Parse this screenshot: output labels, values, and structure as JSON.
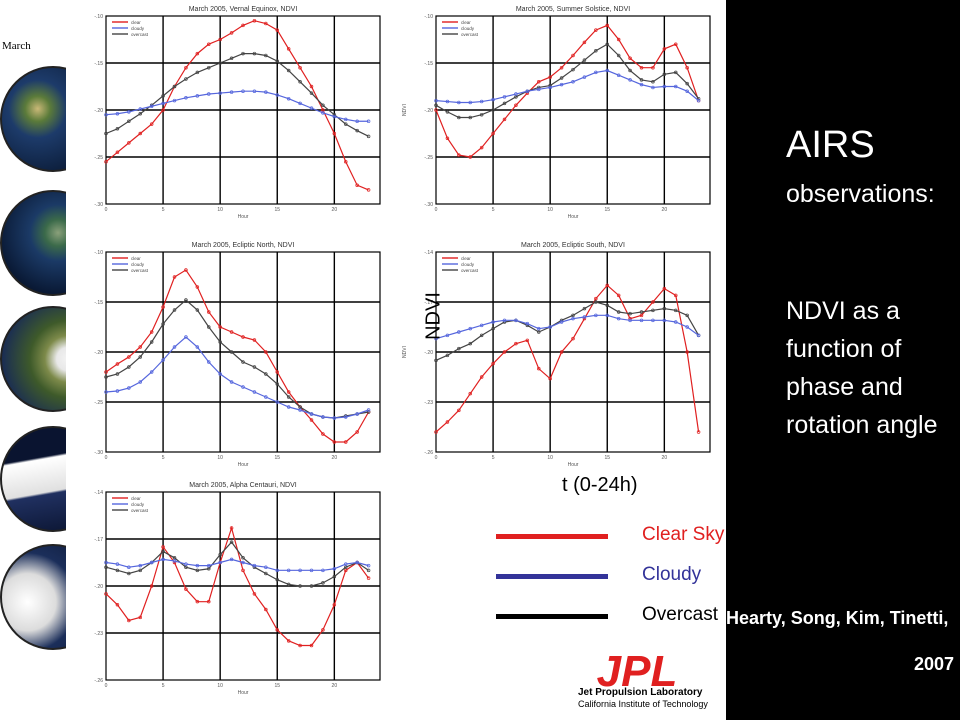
{
  "side_label": "March",
  "chart_data": [
    {
      "type": "line",
      "title": "March 2005, Vernal Equinox, NDVI",
      "xlabel": "Hour",
      "ylabel": "",
      "legend": [
        "clear",
        "cloudy",
        "overcast"
      ],
      "xlim": [
        0,
        24
      ],
      "ylim": [
        -0.3,
        -0.1
      ],
      "x": [
        0,
        1,
        2,
        3,
        4,
        5,
        6,
        7,
        8,
        9,
        10,
        11,
        12,
        13,
        14,
        15,
        16,
        17,
        18,
        19,
        20,
        21,
        22,
        23
      ],
      "series": [
        {
          "name": "clear",
          "color": "#e02020",
          "values": [
            -0.255,
            -0.245,
            -0.235,
            -0.225,
            -0.215,
            -0.2,
            -0.175,
            -0.155,
            -0.14,
            -0.13,
            -0.125,
            -0.118,
            -0.11,
            -0.105,
            -0.108,
            -0.115,
            -0.135,
            -0.155,
            -0.175,
            -0.2,
            -0.225,
            -0.255,
            -0.28,
            -0.285
          ]
        },
        {
          "name": "overcast",
          "color": "#444444",
          "values": [
            -0.225,
            -0.22,
            -0.212,
            -0.204,
            -0.195,
            -0.185,
            -0.175,
            -0.167,
            -0.16,
            -0.155,
            -0.15,
            -0.145,
            -0.14,
            -0.14,
            -0.142,
            -0.148,
            -0.158,
            -0.17,
            -0.182,
            -0.195,
            -0.205,
            -0.215,
            -0.222,
            -0.228
          ]
        },
        {
          "name": "cloudy",
          "color": "#5566dd",
          "values": [
            -0.205,
            -0.204,
            -0.202,
            -0.199,
            -0.196,
            -0.193,
            -0.19,
            -0.187,
            -0.185,
            -0.183,
            -0.182,
            -0.181,
            -0.18,
            -0.18,
            -0.181,
            -0.184,
            -0.188,
            -0.193,
            -0.198,
            -0.203,
            -0.207,
            -0.21,
            -0.212,
            -0.212
          ]
        }
      ]
    },
    {
      "type": "line",
      "title": "March 2005, Summer Solstice, NDVI",
      "xlabel": "Hour",
      "ylabel": "NDVI",
      "legend": [
        "clear",
        "cloudy",
        "overcast"
      ],
      "xlim": [
        0,
        24
      ],
      "ylim": [
        -0.3,
        -0.1
      ],
      "x": [
        0,
        1,
        2,
        3,
        4,
        5,
        6,
        7,
        8,
        9,
        10,
        11,
        12,
        13,
        14,
        15,
        16,
        17,
        18,
        19,
        20,
        21,
        22,
        23
      ],
      "series": [
        {
          "name": "clear",
          "color": "#e02020",
          "values": [
            -0.2,
            -0.23,
            -0.248,
            -0.25,
            -0.24,
            -0.225,
            -0.21,
            -0.195,
            -0.182,
            -0.17,
            -0.165,
            -0.155,
            -0.142,
            -0.128,
            -0.115,
            -0.11,
            -0.125,
            -0.145,
            -0.155,
            -0.155,
            -0.135,
            -0.13,
            -0.155,
            -0.19
          ]
        },
        {
          "name": "overcast",
          "color": "#444444",
          "values": [
            -0.195,
            -0.202,
            -0.208,
            -0.208,
            -0.205,
            -0.2,
            -0.193,
            -0.186,
            -0.18,
            -0.176,
            -0.174,
            -0.166,
            -0.157,
            -0.147,
            -0.137,
            -0.13,
            -0.142,
            -0.158,
            -0.168,
            -0.17,
            -0.162,
            -0.16,
            -0.172,
            -0.188
          ]
        },
        {
          "name": "cloudy",
          "color": "#5566dd",
          "values": [
            -0.19,
            -0.191,
            -0.192,
            -0.192,
            -0.191,
            -0.189,
            -0.186,
            -0.183,
            -0.18,
            -0.178,
            -0.176,
            -0.173,
            -0.17,
            -0.165,
            -0.16,
            -0.158,
            -0.163,
            -0.168,
            -0.173,
            -0.176,
            -0.175,
            -0.175,
            -0.18,
            -0.19
          ]
        }
      ]
    },
    {
      "type": "line",
      "title": "March 2005, Ecliptic North, NDVI",
      "xlabel": "Hour",
      "ylabel": "",
      "legend": [
        "clear",
        "cloudy",
        "overcast"
      ],
      "xlim": [
        0,
        24
      ],
      "ylim": [
        -0.3,
        -0.1
      ],
      "x": [
        0,
        1,
        2,
        3,
        4,
        5,
        6,
        7,
        8,
        9,
        10,
        11,
        12,
        13,
        14,
        15,
        16,
        17,
        18,
        19,
        20,
        21,
        22,
        23
      ],
      "series": [
        {
          "name": "clear",
          "color": "#e02020",
          "values": [
            -0.22,
            -0.212,
            -0.205,
            -0.195,
            -0.18,
            -0.155,
            -0.125,
            -0.118,
            -0.135,
            -0.16,
            -0.175,
            -0.18,
            -0.185,
            -0.188,
            -0.2,
            -0.22,
            -0.24,
            -0.255,
            -0.268,
            -0.282,
            -0.29,
            -0.29,
            -0.28,
            -0.26
          ]
        },
        {
          "name": "overcast",
          "color": "#444444",
          "values": [
            -0.225,
            -0.222,
            -0.215,
            -0.205,
            -0.19,
            -0.172,
            -0.158,
            -0.148,
            -0.158,
            -0.175,
            -0.19,
            -0.2,
            -0.21,
            -0.215,
            -0.222,
            -0.232,
            -0.245,
            -0.255,
            -0.262,
            -0.265,
            -0.266,
            -0.264,
            -0.262,
            -0.26
          ]
        },
        {
          "name": "cloudy",
          "color": "#5566dd",
          "values": [
            -0.24,
            -0.239,
            -0.236,
            -0.23,
            -0.22,
            -0.208,
            -0.195,
            -0.185,
            -0.195,
            -0.21,
            -0.222,
            -0.23,
            -0.235,
            -0.24,
            -0.245,
            -0.25,
            -0.255,
            -0.258,
            -0.262,
            -0.265,
            -0.266,
            -0.265,
            -0.262,
            -0.258
          ]
        }
      ]
    },
    {
      "type": "line",
      "title": "March 2005, Ecliptic South, NDVI",
      "xlabel": "Hour",
      "ylabel": "NDVI",
      "legend": [
        "clear",
        "cloudy",
        "overcast"
      ],
      "xlim": [
        0,
        24
      ],
      "ylim": [
        -0.26,
        -0.14
      ],
      "x": [
        0,
        1,
        2,
        3,
        4,
        5,
        6,
        7,
        8,
        9,
        10,
        11,
        12,
        13,
        14,
        15,
        16,
        17,
        18,
        19,
        20,
        21,
        22,
        23
      ],
      "series": [
        {
          "name": "clear",
          "color": "#e02020",
          "values": [
            -0.248,
            -0.242,
            -0.235,
            -0.225,
            -0.215,
            -0.207,
            -0.2,
            -0.195,
            -0.193,
            -0.21,
            -0.216,
            -0.2,
            -0.192,
            -0.18,
            -0.168,
            -0.16,
            -0.166,
            -0.18,
            -0.178,
            -0.17,
            -0.162,
            -0.166,
            -0.2,
            -0.248
          ]
        },
        {
          "name": "overcast",
          "color": "#444444",
          "values": [
            -0.205,
            -0.202,
            -0.198,
            -0.195,
            -0.19,
            -0.186,
            -0.182,
            -0.181,
            -0.184,
            -0.188,
            -0.185,
            -0.181,
            -0.178,
            -0.174,
            -0.17,
            -0.172,
            -0.176,
            -0.177,
            -0.176,
            -0.175,
            -0.174,
            -0.175,
            -0.178,
            -0.19
          ]
        },
        {
          "name": "cloudy",
          "color": "#5566dd",
          "values": [
            -0.192,
            -0.19,
            -0.188,
            -0.186,
            -0.184,
            -0.182,
            -0.181,
            -0.181,
            -0.183,
            -0.186,
            -0.185,
            -0.182,
            -0.18,
            -0.179,
            -0.178,
            -0.178,
            -0.18,
            -0.181,
            -0.181,
            -0.181,
            -0.181,
            -0.182,
            -0.185,
            -0.19
          ]
        }
      ]
    },
    {
      "type": "line",
      "title": "March 2005, Alpha Centauri, NDVI",
      "xlabel": "Hour",
      "ylabel": "",
      "legend": [
        "clear",
        "cloudy",
        "overcast"
      ],
      "xlim": [
        0,
        24
      ],
      "ylim": [
        -0.26,
        -0.14
      ],
      "x": [
        0,
        1,
        2,
        3,
        4,
        5,
        6,
        7,
        8,
        9,
        10,
        11,
        12,
        13,
        14,
        15,
        16,
        17,
        18,
        19,
        20,
        21,
        22,
        23
      ],
      "series": [
        {
          "name": "clear",
          "color": "#e02020",
          "values": [
            -0.205,
            -0.212,
            -0.222,
            -0.22,
            -0.2,
            -0.175,
            -0.185,
            -0.202,
            -0.21,
            -0.21,
            -0.185,
            -0.163,
            -0.19,
            -0.205,
            -0.215,
            -0.228,
            -0.235,
            -0.238,
            -0.238,
            -0.228,
            -0.212,
            -0.19,
            -0.185,
            -0.195
          ]
        },
        {
          "name": "overcast",
          "color": "#444444",
          "values": [
            -0.188,
            -0.19,
            -0.192,
            -0.19,
            -0.185,
            -0.178,
            -0.182,
            -0.188,
            -0.19,
            -0.189,
            -0.18,
            -0.172,
            -0.182,
            -0.188,
            -0.192,
            -0.196,
            -0.199,
            -0.2,
            -0.2,
            -0.198,
            -0.194,
            -0.188,
            -0.185,
            -0.19
          ]
        },
        {
          "name": "cloudy",
          "color": "#5566dd",
          "values": [
            -0.185,
            -0.186,
            -0.188,
            -0.187,
            -0.185,
            -0.183,
            -0.184,
            -0.186,
            -0.187,
            -0.187,
            -0.185,
            -0.183,
            -0.185,
            -0.187,
            -0.188,
            -0.19,
            -0.19,
            -0.19,
            -0.19,
            -0.19,
            -0.189,
            -0.186,
            -0.185,
            -0.187
          ]
        }
      ]
    }
  ],
  "overlay": {
    "ndvi_label": "NDVI",
    "time_label": "t (0-24h)"
  },
  "legend_main": [
    {
      "label": "Clear Sky",
      "color": "#e02020"
    },
    {
      "label": "Cloudy",
      "color": "#333399"
    },
    {
      "label": "Overcast",
      "color": "#000000"
    }
  ],
  "right_panel": {
    "headline": "AIRS",
    "subline": "observations:",
    "description": "NDVI as a function of phase and rotation angle",
    "authors": "Hearty, Song, Kim, Tinetti,",
    "year": "2007"
  },
  "jpl": {
    "logo_text": "JPL",
    "line1": "Jet Propulsion Laboratory",
    "line2": "California Institute of Technology",
    "color": "#e02020"
  }
}
